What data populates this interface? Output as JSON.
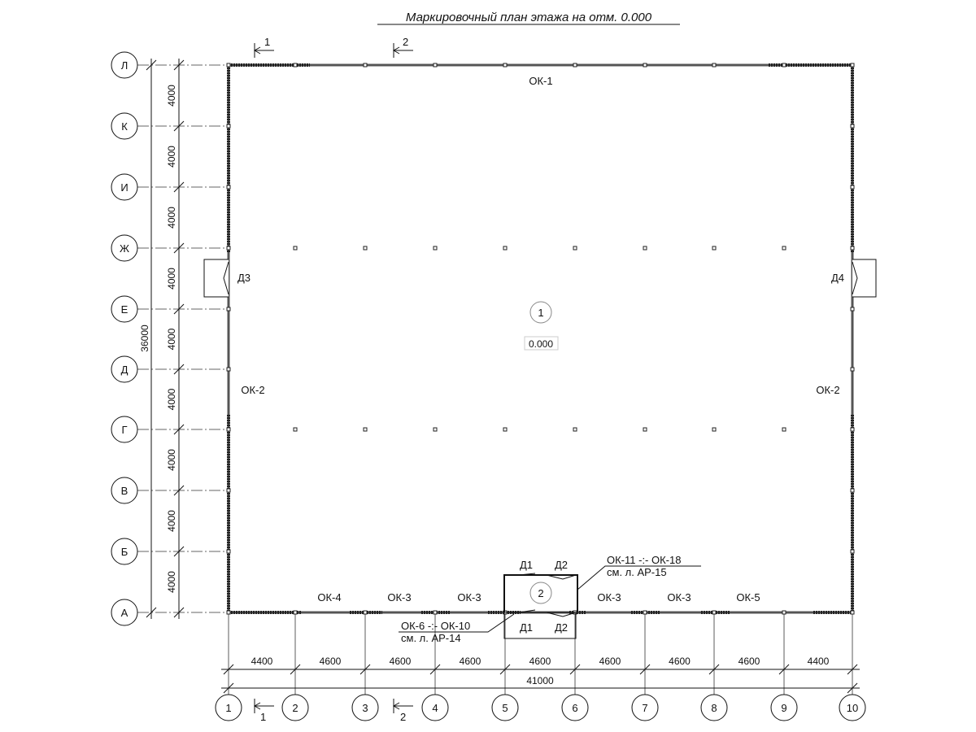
{
  "title": "Маркировочный план этажа на отм. 0.000",
  "row_axes": [
    "Л",
    "К",
    "И",
    "Ж",
    "Е",
    "Д",
    "Г",
    "В",
    "Б",
    "А"
  ],
  "row_dims": [
    "4000",
    "4000",
    "4000",
    "4000",
    "4000",
    "4000",
    "4000",
    "4000",
    "4000"
  ],
  "row_total": "36000",
  "col_axes": [
    "1",
    "2",
    "3",
    "4",
    "5",
    "6",
    "7",
    "8",
    "9",
    "10"
  ],
  "col_dims": [
    "4400",
    "4600",
    "4600",
    "4600",
    "4600",
    "4600",
    "4600",
    "4600",
    "4400"
  ],
  "col_total": "41000",
  "section_marks": [
    "1",
    "2"
  ],
  "room": {
    "number": "1",
    "level": "0.000"
  },
  "vestibule": {
    "number": "2"
  },
  "labels": {
    "ok1": "ОК-1",
    "ok2_left": "ОК-2",
    "ok2_right": "ОК-2",
    "ok4": "ОК-4",
    "ok3": "ОК-3",
    "ok5": "ОК-5",
    "d1": "Д1",
    "d2": "Д2",
    "d3": "Д3",
    "d4": "Д4",
    "note_top_1": "ОК-11 -:- ОК-18",
    "note_top_2": "см. л. АР-15",
    "note_bot_1": "ОК-6 -:- ОК-10",
    "note_bot_2": "см. л. АР-14"
  }
}
